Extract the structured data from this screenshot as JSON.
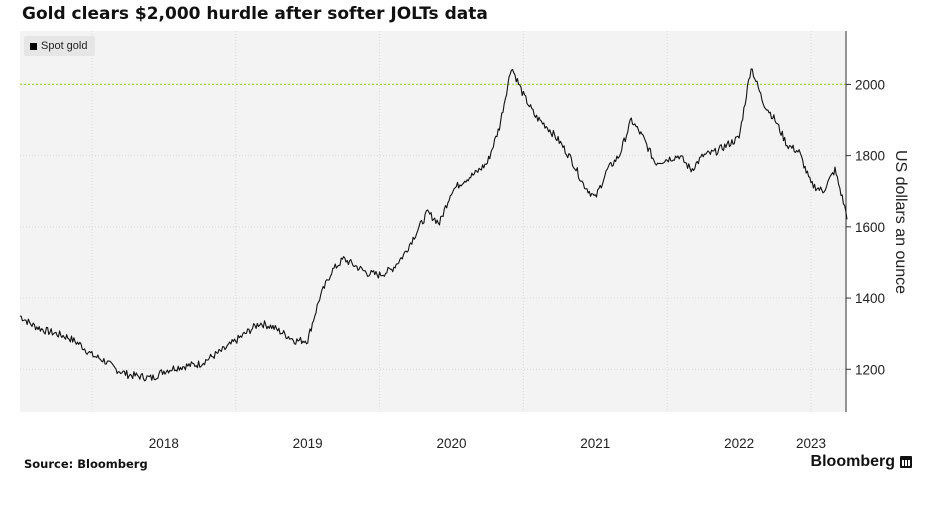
{
  "title": "Gold clears $2,000 hurdle after softer JOLTs data",
  "source": "Source: Bloomberg",
  "brand": "Bloomberg",
  "colors": {
    "line": "#111111",
    "reference_line": "#9bd64b",
    "plot_background": "#f3f3f3",
    "grid": "#d8d8d8"
  },
  "chart_data": {
    "type": "line",
    "title": "Gold clears $2,000 hurdle after softer JOLTs data",
    "ylabel": "US dollars an ounce",
    "xlabel": "",
    "y_axis_side": "right",
    "grid": true,
    "legend_position": "top-left",
    "ylim": [
      1080,
      2150
    ],
    "xlim": [
      "2017-07",
      "2023-04"
    ],
    "x_ticks": [
      "2018",
      "2019",
      "2020",
      "2021",
      "2022",
      "2023"
    ],
    "y_ticks": [
      1200,
      1400,
      1600,
      1800,
      2000
    ],
    "reference_lines": [
      {
        "y": 2000,
        "style": "dotted"
      }
    ],
    "series": [
      {
        "name": "Spot gold",
        "x": [
          "2017-07",
          "2017-08",
          "2017-09",
          "2017-10",
          "2017-11",
          "2017-12",
          "2018-01",
          "2018-02",
          "2018-03",
          "2018-04",
          "2018-05",
          "2018-06",
          "2018-07",
          "2018-08",
          "2018-09",
          "2018-10",
          "2018-11",
          "2018-12",
          "2019-01",
          "2019-02",
          "2019-03",
          "2019-04",
          "2019-05",
          "2019-06",
          "2019-07",
          "2019-08",
          "2019-09",
          "2019-10",
          "2019-11",
          "2019-12",
          "2020-01",
          "2020-02",
          "2020-03",
          "2020-04",
          "2020-05",
          "2020-06",
          "2020-07",
          "2020-08",
          "2020-09",
          "2020-10",
          "2020-11",
          "2020-12",
          "2021-01",
          "2021-02",
          "2021-03",
          "2021-04",
          "2021-05",
          "2021-06",
          "2021-07",
          "2021-08",
          "2021-09",
          "2021-10",
          "2021-11",
          "2021-12",
          "2022-01",
          "2022-02",
          "2022-03",
          "2022-04",
          "2022-05",
          "2022-06",
          "2022-07",
          "2022-08",
          "2022-09",
          "2022-10",
          "2022-11",
          "2022-12",
          "2023-01",
          "2023-02",
          "2023-03",
          "2023-04"
        ],
        "values": [
          1350,
          1325,
          1310,
          1300,
          1290,
          1270,
          1240,
          1225,
          1200,
          1185,
          1180,
          1175,
          1195,
          1205,
          1210,
          1215,
          1235,
          1255,
          1280,
          1305,
          1330,
          1320,
          1300,
          1280,
          1282,
          1400,
          1475,
          1510,
          1490,
          1470,
          1465,
          1480,
          1520,
          1580,
          1640,
          1610,
          1700,
          1730,
          1750,
          1780,
          1880,
          2050,
          1970,
          1910,
          1880,
          1840,
          1790,
          1720,
          1680,
          1760,
          1800,
          1900,
          1850,
          1780,
          1790,
          1800,
          1760,
          1800,
          1810,
          1830,
          1850,
          2050,
          1950,
          1900,
          1830,
          1810,
          1720,
          1700,
          1760,
          1630
        ]
      }
    ]
  }
}
